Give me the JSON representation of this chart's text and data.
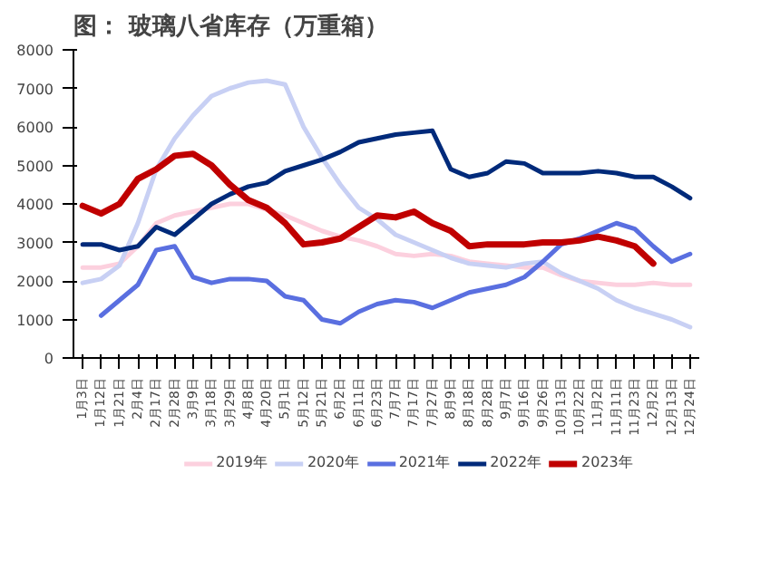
{
  "chart_data": {
    "type": "line",
    "title": "图：  玻璃八省库存（万重箱）",
    "categories": [
      "1月3日",
      "1月12日",
      "1月21日",
      "2月4日",
      "2月17日",
      "2月28日",
      "3月9日",
      "3月18日",
      "3月29日",
      "4月8日",
      "4月20日",
      "5月1日",
      "5月12日",
      "5月21日",
      "6月2日",
      "6月11日",
      "6月23日",
      "7月7日",
      "7月17日",
      "7月27日",
      "8月9日",
      "8月18日",
      "8月28日",
      "9月7日",
      "9月16日",
      "9月26日",
      "10月13日",
      "10月22日",
      "11月2日",
      "11月11日",
      "11月23日",
      "12月2日",
      "12月13日",
      "12月24日"
    ],
    "series": [
      {
        "name": "2019年",
        "color": "#fcd0de",
        "values": [
          2350,
          2350,
          2450,
          2900,
          3500,
          3700,
          3800,
          3900,
          4000,
          4000,
          3850,
          3700,
          3500,
          3300,
          3150,
          3050,
          2900,
          2700,
          2650,
          2700,
          2650,
          2500,
          2450,
          2400,
          2350,
          2350,
          2150,
          2000,
          1950,
          1900,
          1900,
          1950,
          1900,
          1900
        ]
      },
      {
        "name": "2020年",
        "color": "#c8d0f4",
        "values": [
          1950,
          2050,
          2400,
          3500,
          4900,
          5700,
          6300,
          6800,
          7000,
          7150,
          7200,
          7100,
          6000,
          5200,
          4500,
          3900,
          3600,
          3200,
          3000,
          2800,
          2600,
          2450,
          2400,
          2350,
          2450,
          2500,
          2200,
          2000,
          1800,
          1500,
          1300,
          1150,
          1000,
          800
        ]
      },
      {
        "name": "2021年",
        "color": "#5a6fe0",
        "values": [
          null,
          1100,
          1500,
          1900,
          2800,
          2900,
          2100,
          1950,
          2050,
          2050,
          2000,
          1600,
          1500,
          1000,
          900,
          1200,
          1400,
          1500,
          1450,
          1300,
          1500,
          1700,
          1800,
          1900,
          2100,
          2500,
          2950,
          3100,
          3300,
          3500,
          3350,
          2900,
          2500,
          2700
        ]
      },
      {
        "name": "2022年",
        "color": "#002a7a",
        "values": [
          2950,
          2950,
          2800,
          2900,
          3400,
          3200,
          3600,
          4000,
          4250,
          4450,
          4550,
          4850,
          5000,
          5150,
          5350,
          5600,
          5700,
          5800,
          5850,
          5900,
          4900,
          4700,
          4800,
          5100,
          5050,
          4800,
          4800,
          4800,
          4850,
          4800,
          4700,
          4700,
          4450,
          4150
        ]
      },
      {
        "name": "2023年",
        "color": "#c00000",
        "values": [
          3950,
          3750,
          4000,
          4650,
          4900,
          5250,
          5300,
          5000,
          4500,
          4100,
          3900,
          3500,
          2950,
          3000,
          3100,
          3400,
          3700,
          3650,
          3800,
          3500,
          3300,
          2900,
          2950,
          2950,
          2950,
          3000,
          3000,
          3050,
          3150,
          3050,
          2900,
          2450,
          null,
          null
        ]
      }
    ],
    "ylim": [
      0,
      8000
    ],
    "yticks": [
      0,
      1000,
      2000,
      3000,
      4000,
      5000,
      6000,
      7000,
      8000
    ],
    "grid": false,
    "legend": "bottom",
    "marker": "none",
    "line_style": "solid"
  }
}
